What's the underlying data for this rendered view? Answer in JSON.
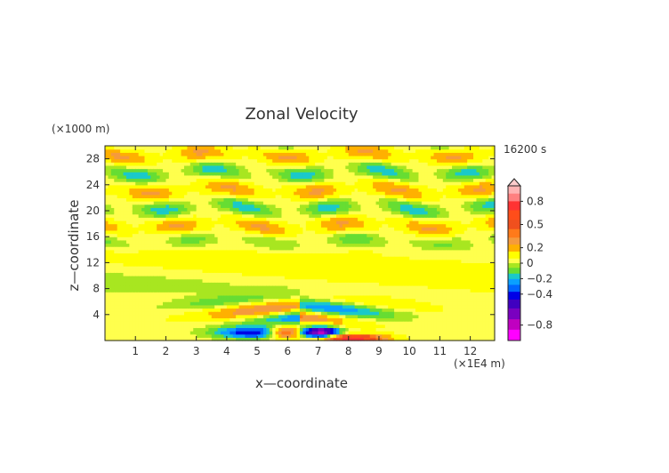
{
  "chart_data": {
    "type": "heatmap",
    "title": "Zonal Velocity",
    "xlabel": "x—coordinate",
    "ylabel": "z—coordinate",
    "x_unit": "(×1E4 m)",
    "y_unit": "(×1000 m)",
    "time_label": "16200 s",
    "xlim": [
      0,
      12.8
    ],
    "ylim": [
      0,
      30
    ],
    "x_ticks": [
      1,
      2,
      3,
      4,
      5,
      6,
      7,
      8,
      9,
      10,
      11,
      12
    ],
    "y_ticks": [
      4,
      8,
      12,
      16,
      20,
      24,
      28
    ],
    "colorbar": {
      "labels": [
        "0.8",
        "0.5",
        "0.2",
        "0",
        "−0.2",
        "−0.4",
        "−0.8"
      ],
      "label_values": [
        0.8,
        0.5,
        0.2,
        0,
        -0.2,
        -0.4,
        -0.8
      ],
      "levels": [
        {
          "value": 0.95,
          "color": "#ffb3b3"
        },
        {
          "value": 0.85,
          "color": "#ff8080"
        },
        {
          "value": 0.75,
          "color": "#ff3333"
        },
        {
          "value": 0.62,
          "color": "#ff4d1a"
        },
        {
          "value": 0.5,
          "color": "#f0501e"
        },
        {
          "value": 0.38,
          "color": "#ff7a1a"
        },
        {
          "value": 0.28,
          "color": "#f59a3c"
        },
        {
          "value": 0.2,
          "color": "#ffb000"
        },
        {
          "value": 0.1,
          "color": "#ffff00"
        },
        {
          "value": 0.02,
          "color": "#ffff4d"
        },
        {
          "value": -0.02,
          "color": "#a8e620"
        },
        {
          "value": -0.1,
          "color": "#66dd33"
        },
        {
          "value": -0.17,
          "color": "#1ac9c9"
        },
        {
          "value": -0.24,
          "color": "#0aa0ff"
        },
        {
          "value": -0.32,
          "color": "#0066ff"
        },
        {
          "value": -0.42,
          "color": "#0000e6"
        },
        {
          "value": -0.52,
          "color": "#4000c0"
        },
        {
          "value": -0.65,
          "color": "#7a00c0"
        },
        {
          "value": -0.8,
          "color": "#c000c0"
        },
        {
          "value": -0.92,
          "color": "#ff00ff"
        }
      ]
    }
  }
}
